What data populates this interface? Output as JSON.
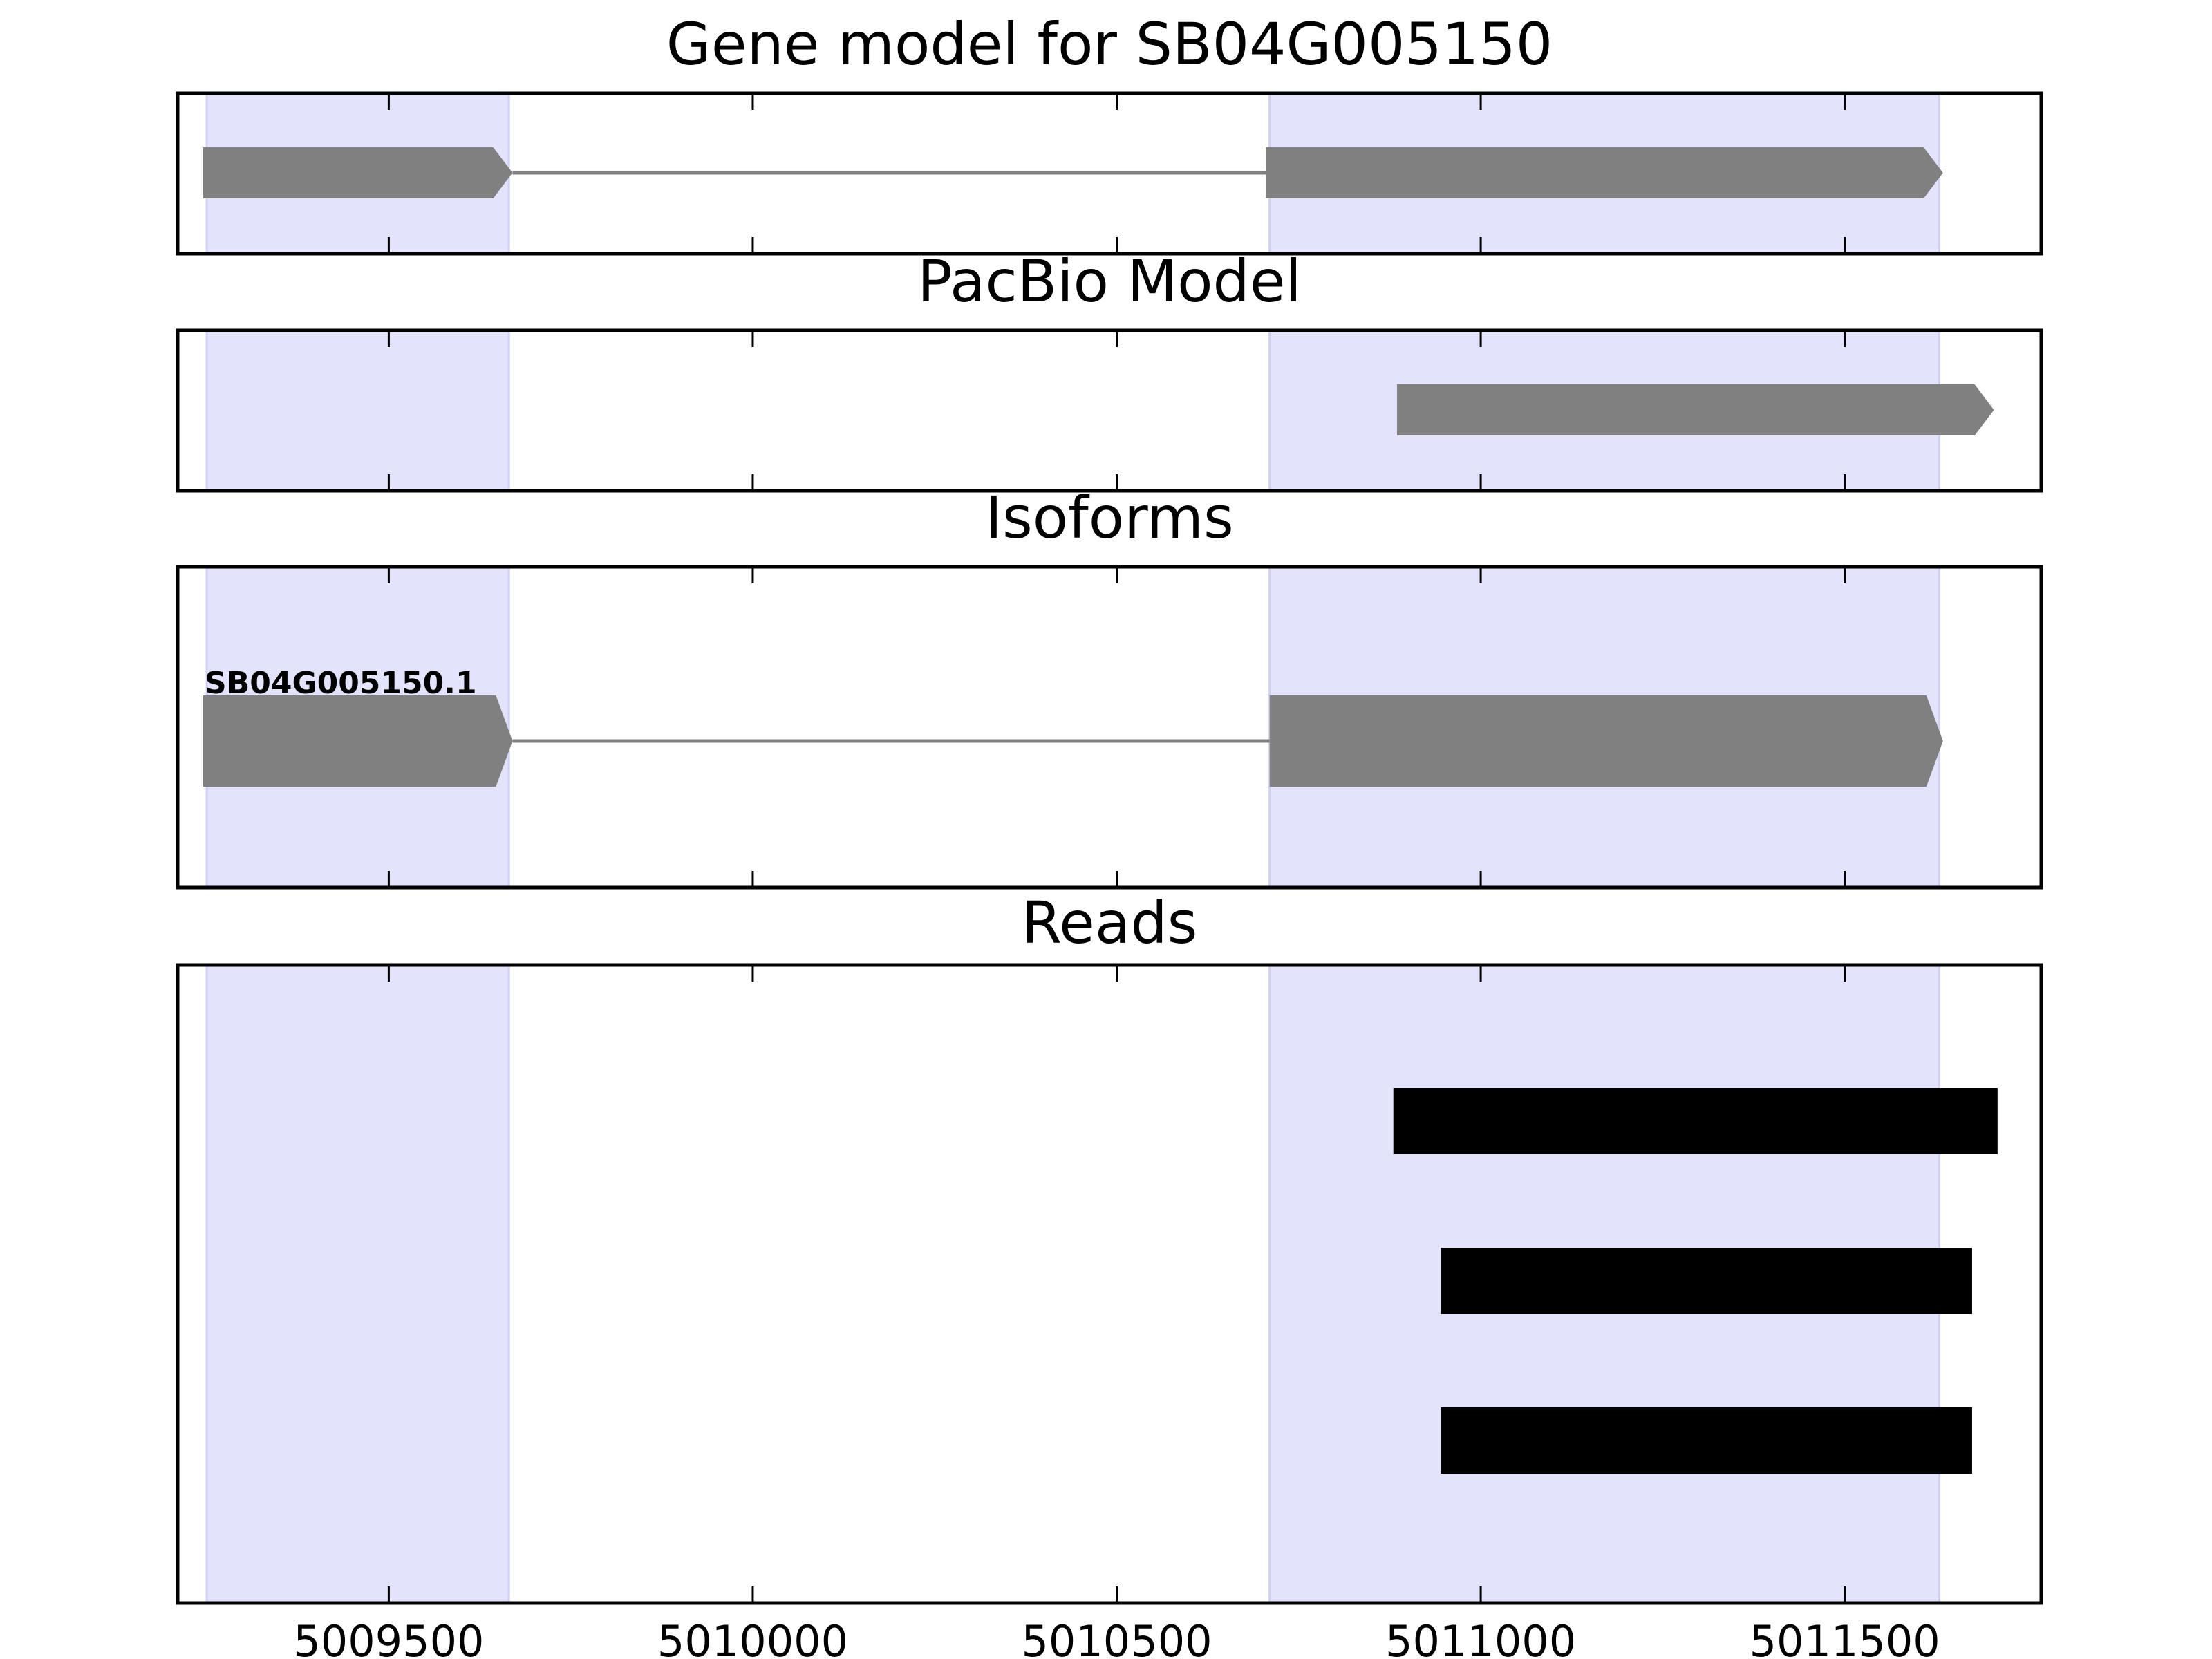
{
  "chart_data": [
    {
      "type": "gene-track",
      "title": "Gene model for SB04G005150",
      "xlim": [
        5009210,
        5011770
      ],
      "highlights": [
        [
          5009250,
          5009665
        ],
        [
          5010710,
          5011630
        ]
      ],
      "features": [
        {
          "kind": "exon",
          "start": 5009245,
          "end": 5009670,
          "strand": "+"
        },
        {
          "kind": "intron",
          "start": 5009670,
          "end": 5010705
        },
        {
          "kind": "exon",
          "start": 5010705,
          "end": 5011635,
          "strand": "+"
        }
      ]
    },
    {
      "type": "gene-track",
      "title": "PacBio Model",
      "xlim": [
        5009210,
        5011770
      ],
      "highlights": [
        [
          5009250,
          5009665
        ],
        [
          5010710,
          5011630
        ]
      ],
      "features": [
        {
          "kind": "exon",
          "start": 5010885,
          "end": 5011705,
          "strand": "+"
        }
      ]
    },
    {
      "type": "gene-track",
      "title": "Isoforms",
      "xlim": [
        5009210,
        5011770
      ],
      "highlights": [
        [
          5009250,
          5009665
        ],
        [
          5010710,
          5011630
        ]
      ],
      "label": "SB04G005150.1",
      "features": [
        {
          "kind": "exon",
          "start": 5009245,
          "end": 5009670,
          "strand": "+"
        },
        {
          "kind": "intron",
          "start": 5009670,
          "end": 5010710
        },
        {
          "kind": "exon",
          "start": 5010710,
          "end": 5011635,
          "strand": "+"
        }
      ]
    },
    {
      "type": "reads",
      "title": "Reads",
      "xlim": [
        5009210,
        5011770
      ],
      "highlights": [
        [
          5009250,
          5009665
        ],
        [
          5010710,
          5011630
        ]
      ],
      "xticks": [
        5009500,
        5010000,
        5010500,
        5011000,
        5011500
      ],
      "xtick_labels": [
        "5009500",
        "5010000",
        "5010500",
        "5011000",
        "5011500"
      ],
      "reads": [
        {
          "start": 5010880,
          "end": 5011710
        },
        {
          "start": 5010945,
          "end": 5011675
        },
        {
          "start": 5010945,
          "end": 5011675
        }
      ]
    }
  ],
  "colors": {
    "highlight": "#e3e3fc",
    "highlight_edge": "#d0d0f4",
    "feature": "#808080",
    "read": "#000000",
    "axes": "#000000"
  }
}
